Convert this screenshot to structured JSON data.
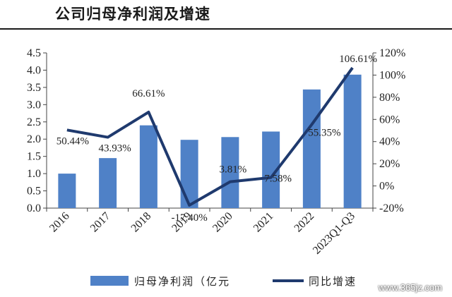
{
  "page": {
    "title": "公司归母净利润及增速",
    "watermark": "www.365jz.com"
  },
  "chart_data": {
    "type": "bar",
    "categories": [
      "2016",
      "2017",
      "2018",
      "2019",
      "2020",
      "2021",
      "2022",
      "2023Q1-Q3"
    ],
    "series": [
      {
        "name": "归母净利润（亿元",
        "type": "bar",
        "axis": "left",
        "values": [
          1.0,
          1.45,
          2.4,
          1.98,
          2.06,
          2.22,
          3.44,
          3.87
        ],
        "color": "#4f81c7"
      },
      {
        "name": "同比增速",
        "type": "line",
        "axis": "right",
        "values": [
          50.44,
          43.93,
          66.61,
          -17.4,
          3.81,
          7.58,
          55.35,
          106.61
        ],
        "labels": [
          "50.44%",
          "43.93%",
          "66.61%",
          "-17.40%",
          "3.81%",
          "7.58%",
          "55.35%",
          "106.61%"
        ],
        "color": "#1f3a6e"
      }
    ],
    "y_left": {
      "min": 0,
      "max": 4.5,
      "ticks": [
        "0.0",
        "0.5",
        "1.0",
        "1.5",
        "2.0",
        "2.5",
        "3.0",
        "3.5",
        "4.0",
        "4.5"
      ]
    },
    "y_right": {
      "min": -20,
      "max": 120,
      "ticks": [
        "-20%",
        "0%",
        "20%",
        "40%",
        "60%",
        "80%",
        "100%",
        "120%"
      ]
    },
    "legend_position": "bottom",
    "grid": false
  }
}
